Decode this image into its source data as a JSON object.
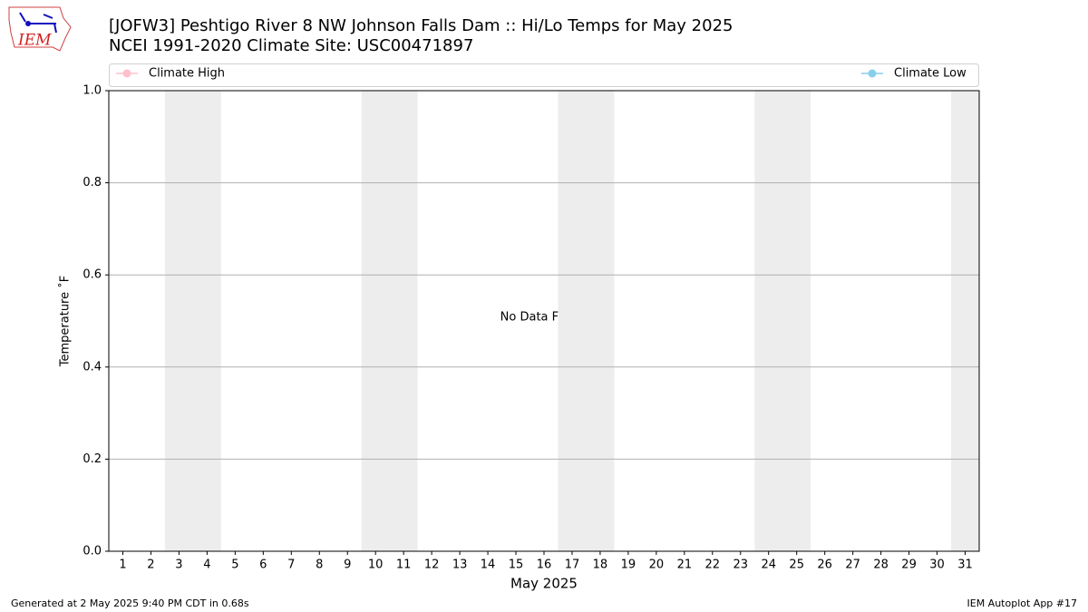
{
  "chart_data": {
    "type": "line",
    "title": "[JOFW3] Peshtigo River 8 NW Johnson Falls Dam :: Hi/Lo Temps for May 2025",
    "subtitle": "NCEI 1991-2020 Climate Site: USC00471897",
    "xlabel": "May 2025",
    "ylabel": "Temperature ˚F",
    "annotation": "No Data Found",
    "series": [
      {
        "name": "Climate High",
        "color": "#ffc0cb"
      },
      {
        "name": "Climate Low",
        "color": "#87ceeb"
      }
    ],
    "xlim": [
      0.5,
      31.5
    ],
    "xticks": [
      1,
      2,
      3,
      4,
      5,
      6,
      7,
      8,
      9,
      10,
      11,
      12,
      13,
      14,
      15,
      16,
      17,
      18,
      19,
      20,
      21,
      22,
      23,
      24,
      25,
      26,
      27,
      28,
      29,
      30,
      31
    ],
    "ylim": [
      0,
      1
    ],
    "yticks": [
      {
        "value": 0,
        "label": "0.0"
      },
      0.2,
      0.4,
      0.6,
      0.8,
      {
        "value": 1,
        "label": "1.0"
      }
    ],
    "grid": true,
    "shaded_spans": [
      [
        2.5,
        4.5
      ],
      [
        9.5,
        11.5
      ],
      [
        16.5,
        18.5
      ],
      [
        23.5,
        25.5
      ],
      [
        30.5,
        32.5
      ]
    ],
    "shade_color": "#ededed"
  },
  "logo_text": "IEM",
  "footer_left": "Generated at 2 May 2025 9:40 PM CDT in 0.68s",
  "footer_right": "IEM Autoplot App #17"
}
